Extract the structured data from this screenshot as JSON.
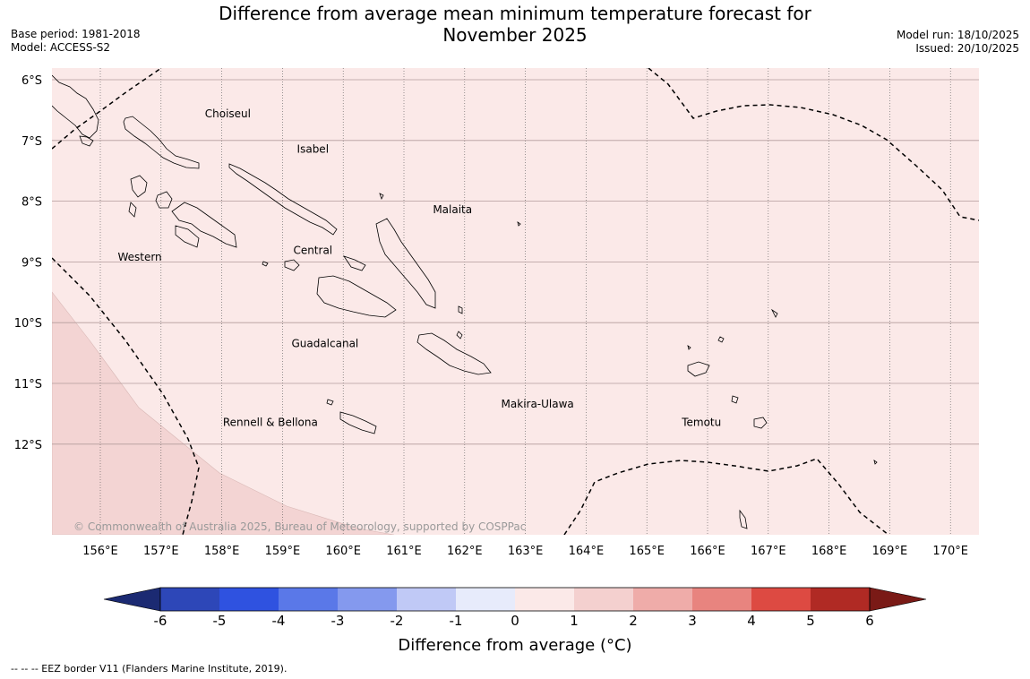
{
  "header": {
    "title_line1": "Difference from average mean minimum temperature forecast for",
    "title_line2": "November 2025",
    "base_period": "Base period: 1981-2018",
    "model": "Model: ACCESS-S2",
    "model_run": "Model run: 18/10/2025",
    "issued": "Issued: 20/10/2025"
  },
  "map": {
    "longitude_labels": [
      "156°E",
      "157°E",
      "158°E",
      "159°E",
      "160°E",
      "161°E",
      "162°E",
      "163°E",
      "164°E",
      "165°E",
      "166°E",
      "167°E",
      "168°E",
      "169°E",
      "170°E"
    ],
    "latitude_labels": [
      "6°S",
      "7°S",
      "8°S",
      "9°S",
      "10°S",
      "11°S",
      "12°S"
    ],
    "province_labels": [
      {
        "name": "Choiseul",
        "lon": 158.1,
        "lat": -6.62
      },
      {
        "name": "Isabel",
        "lon": 159.5,
        "lat": -7.2
      },
      {
        "name": "Malaita",
        "lon": 161.8,
        "lat": -8.2
      },
      {
        "name": "Western",
        "lon": 156.65,
        "lat": -8.98
      },
      {
        "name": "Central",
        "lon": 159.5,
        "lat": -8.87
      },
      {
        "name": "Guadalcanal",
        "lon": 159.7,
        "lat": -10.4
      },
      {
        "name": "Makira-Ulawa",
        "lon": 163.2,
        "lat": -11.4
      },
      {
        "name": "Temotu",
        "lon": 165.9,
        "lat": -11.7
      },
      {
        "name": "Rennell & Bellona",
        "lon": 158.8,
        "lat": -11.7
      }
    ],
    "copyright": "© Commonwealth of Australia 2025, Bureau of Meteorology, supported by COSPPac",
    "fill_base": "#fbe9e8",
    "fill_warm": "#f3d4d3"
  },
  "colorbar": {
    "ticks": [
      "-6",
      "-5",
      "-4",
      "-3",
      "-2",
      "-1",
      "0",
      "1",
      "2",
      "3",
      "4",
      "5",
      "6"
    ],
    "colors": [
      "#1b2a72",
      "#2d47b8",
      "#2f52e0",
      "#5a78e8",
      "#8499ee",
      "#c0c9f6",
      "#e7ebfb",
      "#fbe9e8",
      "#f4d0cf",
      "#efaca9",
      "#e8847f",
      "#dd4a42",
      "#b02a24",
      "#7a1a16"
    ],
    "label": "Difference from average (°C)"
  },
  "footer": {
    "legend_text": "--  --  -- EEZ border V11 (Flanders Marine Institute, 2019)."
  }
}
